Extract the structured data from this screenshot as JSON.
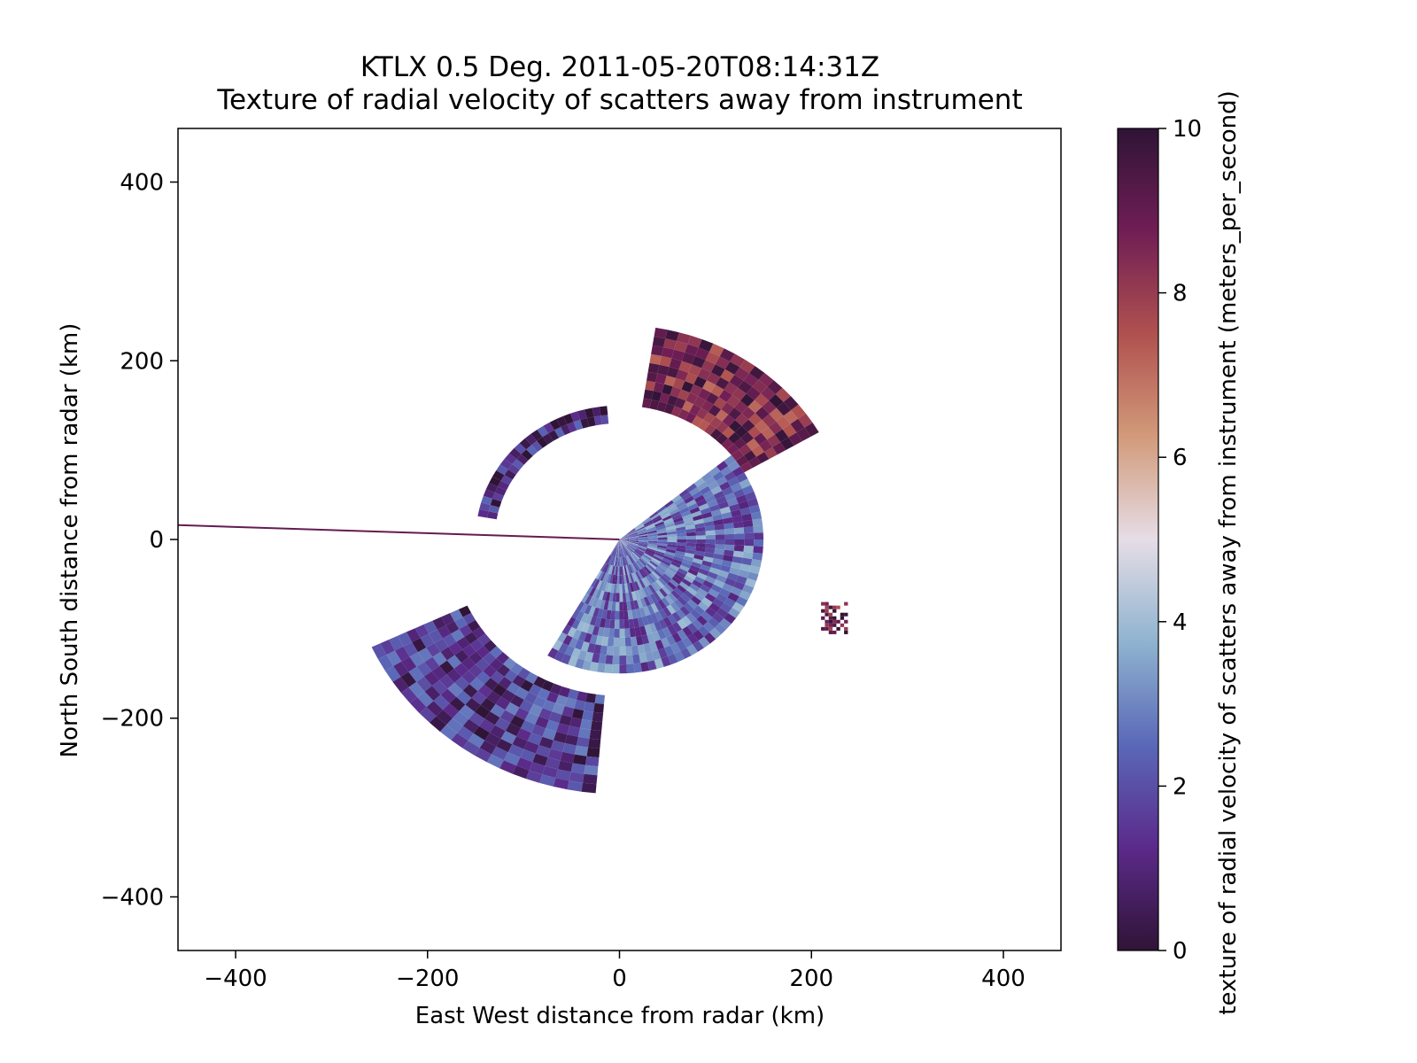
{
  "chart_data": {
    "type": "heatmap",
    "title": "KTLX 0.5 Deg. 2011-05-20T08:14:31Z",
    "subtitle": "Texture of radial velocity of scatters away from instrument",
    "xlabel": "East West distance from radar (km)",
    "ylabel": "North South distance from radar (km)",
    "xlim": [
      -460,
      460
    ],
    "ylim": [
      -460,
      460
    ],
    "x_ticks": [
      -400,
      -200,
      0,
      200,
      400
    ],
    "y_ticks": [
      -400,
      -200,
      0,
      200,
      400
    ],
    "x_tick_labels": [
      "−400",
      "−200",
      "0",
      "200",
      "400"
    ],
    "y_tick_labels": [
      "−400",
      "−200",
      "0",
      "200",
      "400"
    ],
    "colorbar": {
      "label": "texture of radial velocity of scatters away from instrument (meters_per_second)",
      "range": [
        0,
        10
      ],
      "ticks": [
        0,
        2,
        4,
        6,
        8,
        10
      ],
      "tick_labels": [
        "0",
        "2",
        "4",
        "6",
        "8",
        "10"
      ],
      "colormap_stops": [
        "#2f1436",
        "#5b2a8a",
        "#5a68b8",
        "#8fb3cf",
        "#e6dde6",
        "#d29a7a",
        "#b0514f",
        "#701e55",
        "#2f1436"
      ]
    },
    "grid": false,
    "legend": "none",
    "radar_center_km": [
      0,
      0
    ],
    "echo_regions": [
      {
        "name": "southwest-quadrant-band",
        "theta_deg": [
          205,
          265
        ],
        "r_km": [
          175,
          280
        ],
        "texture_ms": 1.5
      },
      {
        "name": "near-range-southeast",
        "theta_deg": [
          240,
          360
        ],
        "r_km": [
          0,
          150
        ],
        "texture_ms": 2.5
      },
      {
        "name": "near-range-east",
        "theta_deg": [
          0,
          38
        ],
        "r_km": [
          0,
          150
        ],
        "texture_ms": 2.5
      },
      {
        "name": "north-northwest-arc",
        "theta_deg": [
          95,
          170
        ],
        "r_km": [
          130,
          150
        ],
        "texture_ms": 1.0
      },
      {
        "name": "northeast-far-echoes",
        "theta_deg": [
          30,
          80
        ],
        "r_km": [
          150,
          240
        ],
        "texture_ms": 8.5
      },
      {
        "name": "isolated-cell-east",
        "x_km": [
          210,
          235
        ],
        "y_km": [
          -110,
          -70
        ],
        "texture_ms": 9.0
      }
    ],
    "beam_blockage_ray": {
      "azimuth_deg": 272,
      "from_km": 0,
      "to_km": 470
    }
  }
}
